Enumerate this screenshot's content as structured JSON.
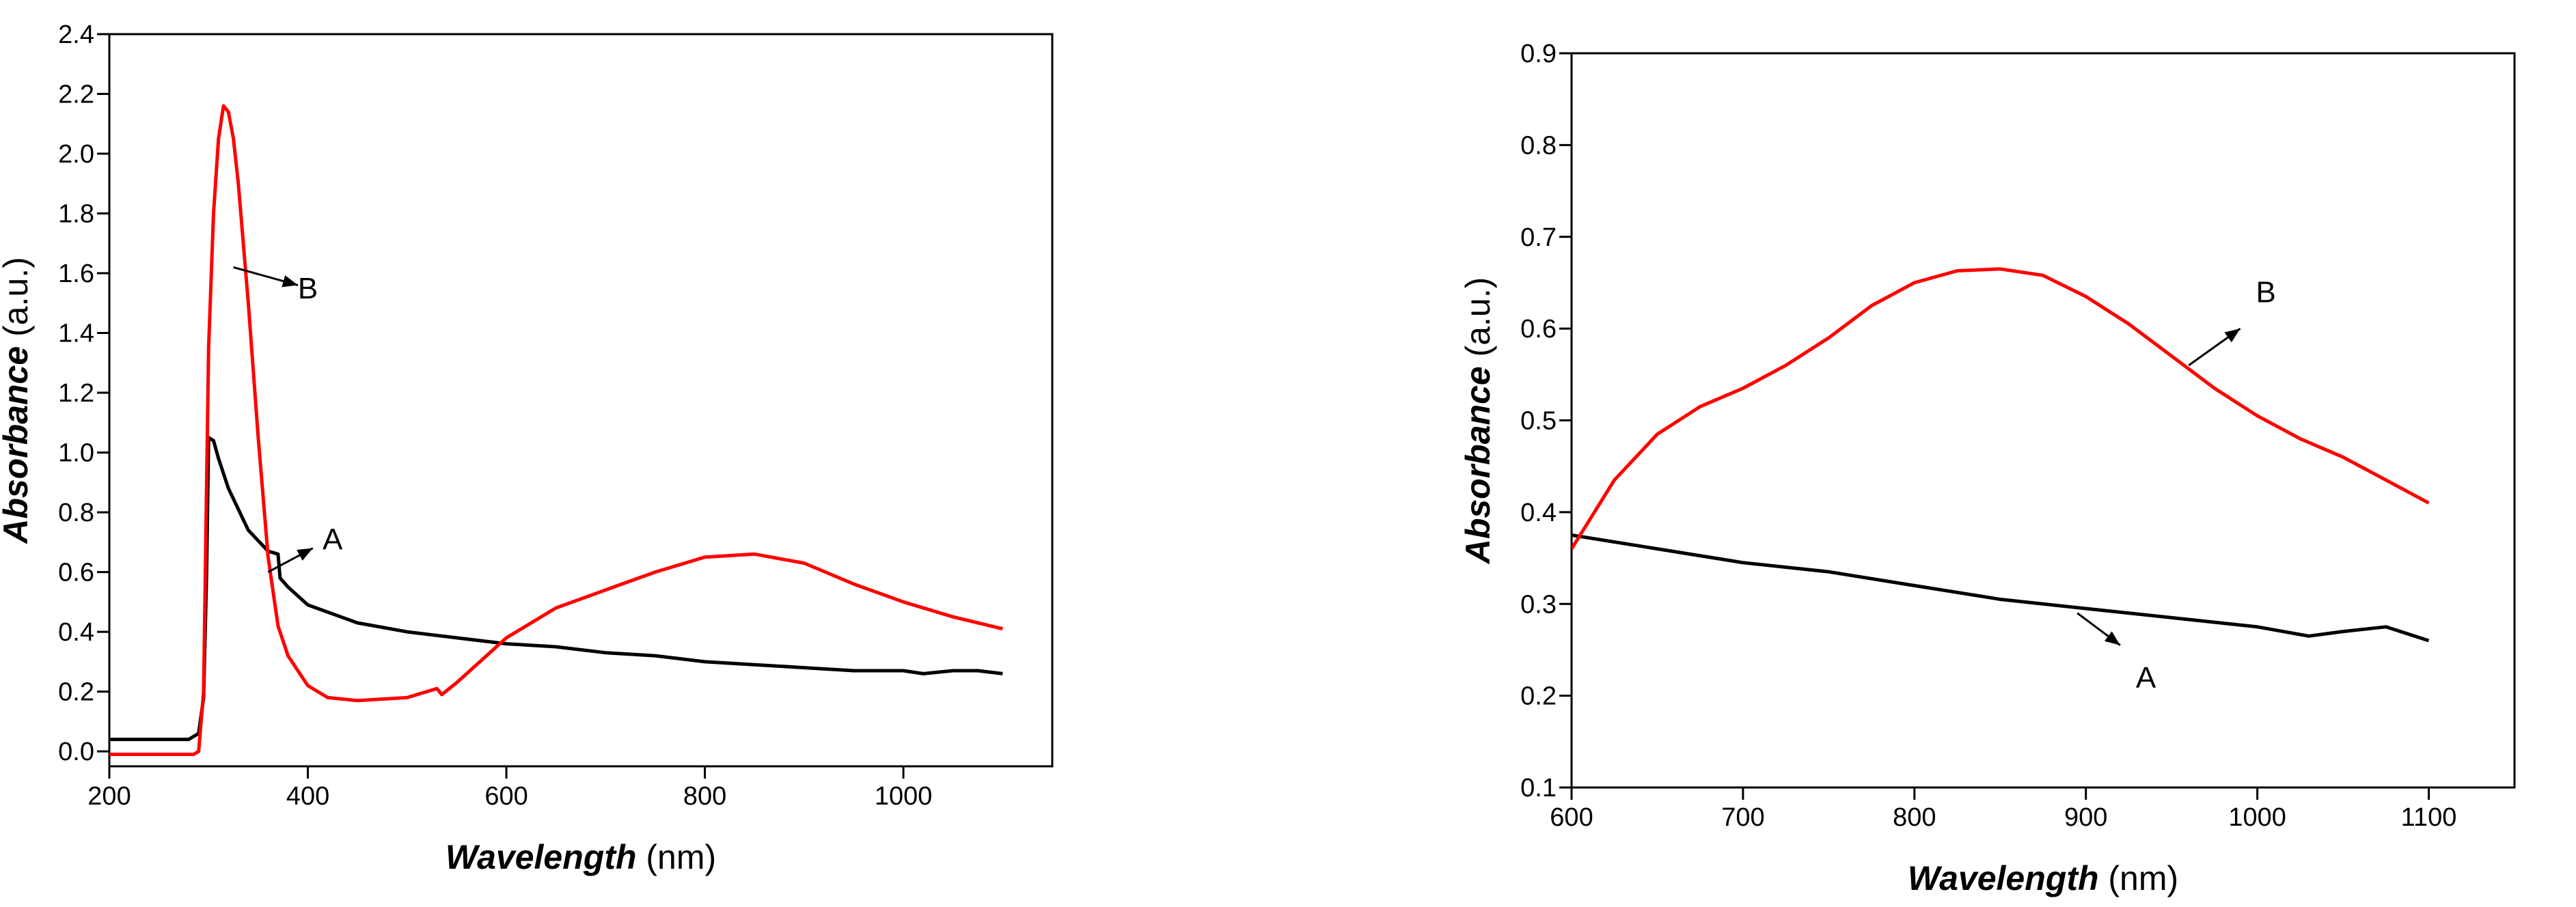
{
  "chart_data": [
    {
      "type": "line",
      "xlabel_em": "Wavelength",
      "xlabel_unit": " (nm)",
      "ylabel_em": "Absorbance",
      "ylabel_unit": " (a.u.)",
      "xlim": [
        200,
        1150
      ],
      "ylim": [
        -0.05,
        2.4
      ],
      "xticks": [
        "200",
        "400",
        "600",
        "800",
        "1000"
      ],
      "xtick_values": [
        200,
        400,
        600,
        800,
        1000
      ],
      "yticks": [
        "0.0",
        "0.2",
        "0.4",
        "0.6",
        "0.8",
        "1.0",
        "1.2",
        "1.4",
        "1.6",
        "1.8",
        "2.0",
        "2.2",
        "2.4"
      ],
      "ytick_values": [
        0.0,
        0.2,
        0.4,
        0.6,
        0.8,
        1.0,
        1.2,
        1.4,
        1.6,
        1.8,
        2.0,
        2.2,
        2.4
      ],
      "grid": false,
      "series": [
        {
          "name": "A",
          "color": "#000000",
          "x": [
            200,
            280,
            290,
            295,
            298,
            300,
            305,
            310,
            320,
            340,
            360,
            370,
            372,
            380,
            400,
            450,
            500,
            550,
            600,
            650,
            700,
            750,
            800,
            850,
            900,
            950,
            1000,
            1020,
            1050,
            1075,
            1100
          ],
          "y": [
            0.04,
            0.04,
            0.06,
            0.18,
            0.6,
            1.05,
            1.04,
            0.98,
            0.88,
            0.74,
            0.67,
            0.66,
            0.58,
            0.55,
            0.49,
            0.43,
            0.4,
            0.38,
            0.36,
            0.35,
            0.33,
            0.32,
            0.3,
            0.29,
            0.28,
            0.27,
            0.27,
            0.26,
            0.27,
            0.27,
            0.26
          ]
        },
        {
          "name": "B",
          "color": "#ff0000",
          "x": [
            200,
            285,
            290,
            295,
            298,
            300,
            305,
            310,
            315,
            320,
            325,
            330,
            340,
            350,
            360,
            370,
            380,
            400,
            420,
            450,
            500,
            530,
            535,
            550,
            600,
            650,
            700,
            750,
            800,
            850,
            900,
            950,
            1000,
            1050,
            1100
          ],
          "y": [
            -0.01,
            -0.01,
            0.0,
            0.2,
            0.9,
            1.35,
            1.8,
            2.05,
            2.16,
            2.14,
            2.05,
            1.9,
            1.5,
            1.05,
            0.65,
            0.42,
            0.32,
            0.22,
            0.18,
            0.17,
            0.18,
            0.21,
            0.19,
            0.23,
            0.38,
            0.48,
            0.54,
            0.6,
            0.65,
            0.66,
            0.63,
            0.56,
            0.5,
            0.45,
            0.41
          ]
        }
      ],
      "annotations": [
        {
          "label": "B",
          "x": 400,
          "y": 1.55,
          "arrow_from": [
            325,
            1.62
          ],
          "arrow_to": [
            390,
            1.56
          ]
        },
        {
          "label": "A",
          "x": 425,
          "y": 0.71,
          "arrow_from": [
            360,
            0.6
          ],
          "arrow_to": [
            405,
            0.68
          ]
        }
      ]
    },
    {
      "type": "line",
      "xlabel_em": "Wavelength",
      "xlabel_unit": " (nm)",
      "ylabel_em": "Absorbance",
      "ylabel_unit": " (a.u.)",
      "xlim": [
        600,
        1150
      ],
      "ylim": [
        0.1,
        0.9
      ],
      "xticks": [
        "600",
        "700",
        "800",
        "900",
        "1000",
        "1100"
      ],
      "xtick_values": [
        600,
        700,
        800,
        900,
        1000,
        1100
      ],
      "yticks": [
        "0.1",
        "0.2",
        "0.3",
        "0.4",
        "0.5",
        "0.6",
        "0.7",
        "0.8",
        "0.9"
      ],
      "ytick_values": [
        0.1,
        0.2,
        0.3,
        0.4,
        0.5,
        0.6,
        0.7,
        0.8,
        0.9
      ],
      "grid": false,
      "series": [
        {
          "name": "A",
          "color": "#000000",
          "x": [
            600,
            650,
            700,
            750,
            800,
            850,
            900,
            950,
            1000,
            1030,
            1050,
            1075,
            1100
          ],
          "y": [
            0.375,
            0.36,
            0.345,
            0.335,
            0.32,
            0.305,
            0.295,
            0.285,
            0.275,
            0.265,
            0.27,
            0.275,
            0.26
          ],
          "label_pos": "below"
        },
        {
          "name": "B",
          "color": "#ff0000",
          "x": [
            600,
            625,
            650,
            675,
            700,
            725,
            750,
            775,
            800,
            825,
            850,
            875,
            900,
            925,
            950,
            975,
            1000,
            1025,
            1050,
            1075,
            1100
          ],
          "y": [
            0.36,
            0.435,
            0.485,
            0.515,
            0.535,
            0.56,
            0.59,
            0.625,
            0.65,
            0.663,
            0.665,
            0.658,
            0.635,
            0.605,
            0.57,
            0.535,
            0.505,
            0.48,
            0.46,
            0.435,
            0.41
          ]
        }
      ],
      "annotations": [
        {
          "label": "B",
          "x": 1005,
          "y": 0.64,
          "arrow_from": [
            960,
            0.56
          ],
          "arrow_to": [
            990,
            0.6
          ]
        },
        {
          "label": "A",
          "x": 935,
          "y": 0.22,
          "arrow_from": [
            895,
            0.29
          ],
          "arrow_to": [
            920,
            0.255
          ]
        }
      ]
    }
  ]
}
